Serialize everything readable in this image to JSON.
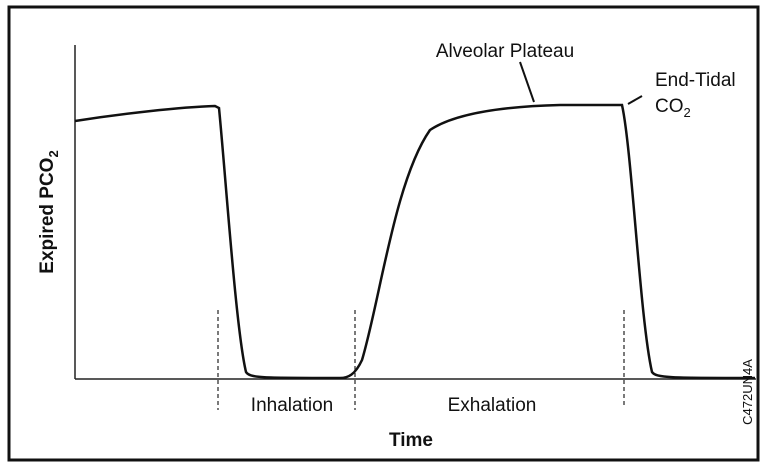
{
  "labels": {
    "alveolar_plateau": "Alveolar Plateau",
    "end_tidal": "End-Tidal",
    "co2_main": "CO",
    "co2_sub": "2",
    "y_axis": "Expired PCO",
    "y_axis_sub": "2",
    "inhalation": "Inhalation",
    "exhalation": "Exhalation",
    "x_axis": "Time",
    "figure_id": "C472UN4A"
  }
}
